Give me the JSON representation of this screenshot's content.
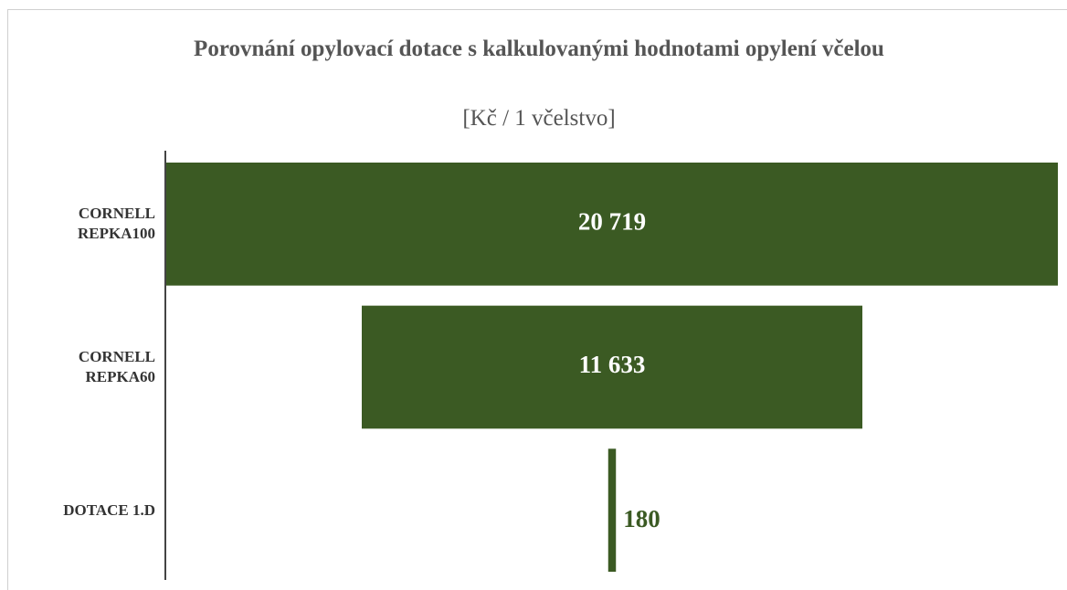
{
  "chart_data": {
    "type": "funnel",
    "title": "Porovnání opylovací dotace s kalkulovanými hodnotami opylení včelou",
    "subtitle": "[Kč / 1 včelstvo]",
    "categories": [
      "CORNELL REPKA100",
      "CORNELL REPKA60",
      "DOTACE 1.D"
    ],
    "values": [
      20719,
      11633,
      180
    ],
    "value_labels": [
      "20 719",
      "11 633",
      "180"
    ],
    "color": "#3b5a23"
  }
}
